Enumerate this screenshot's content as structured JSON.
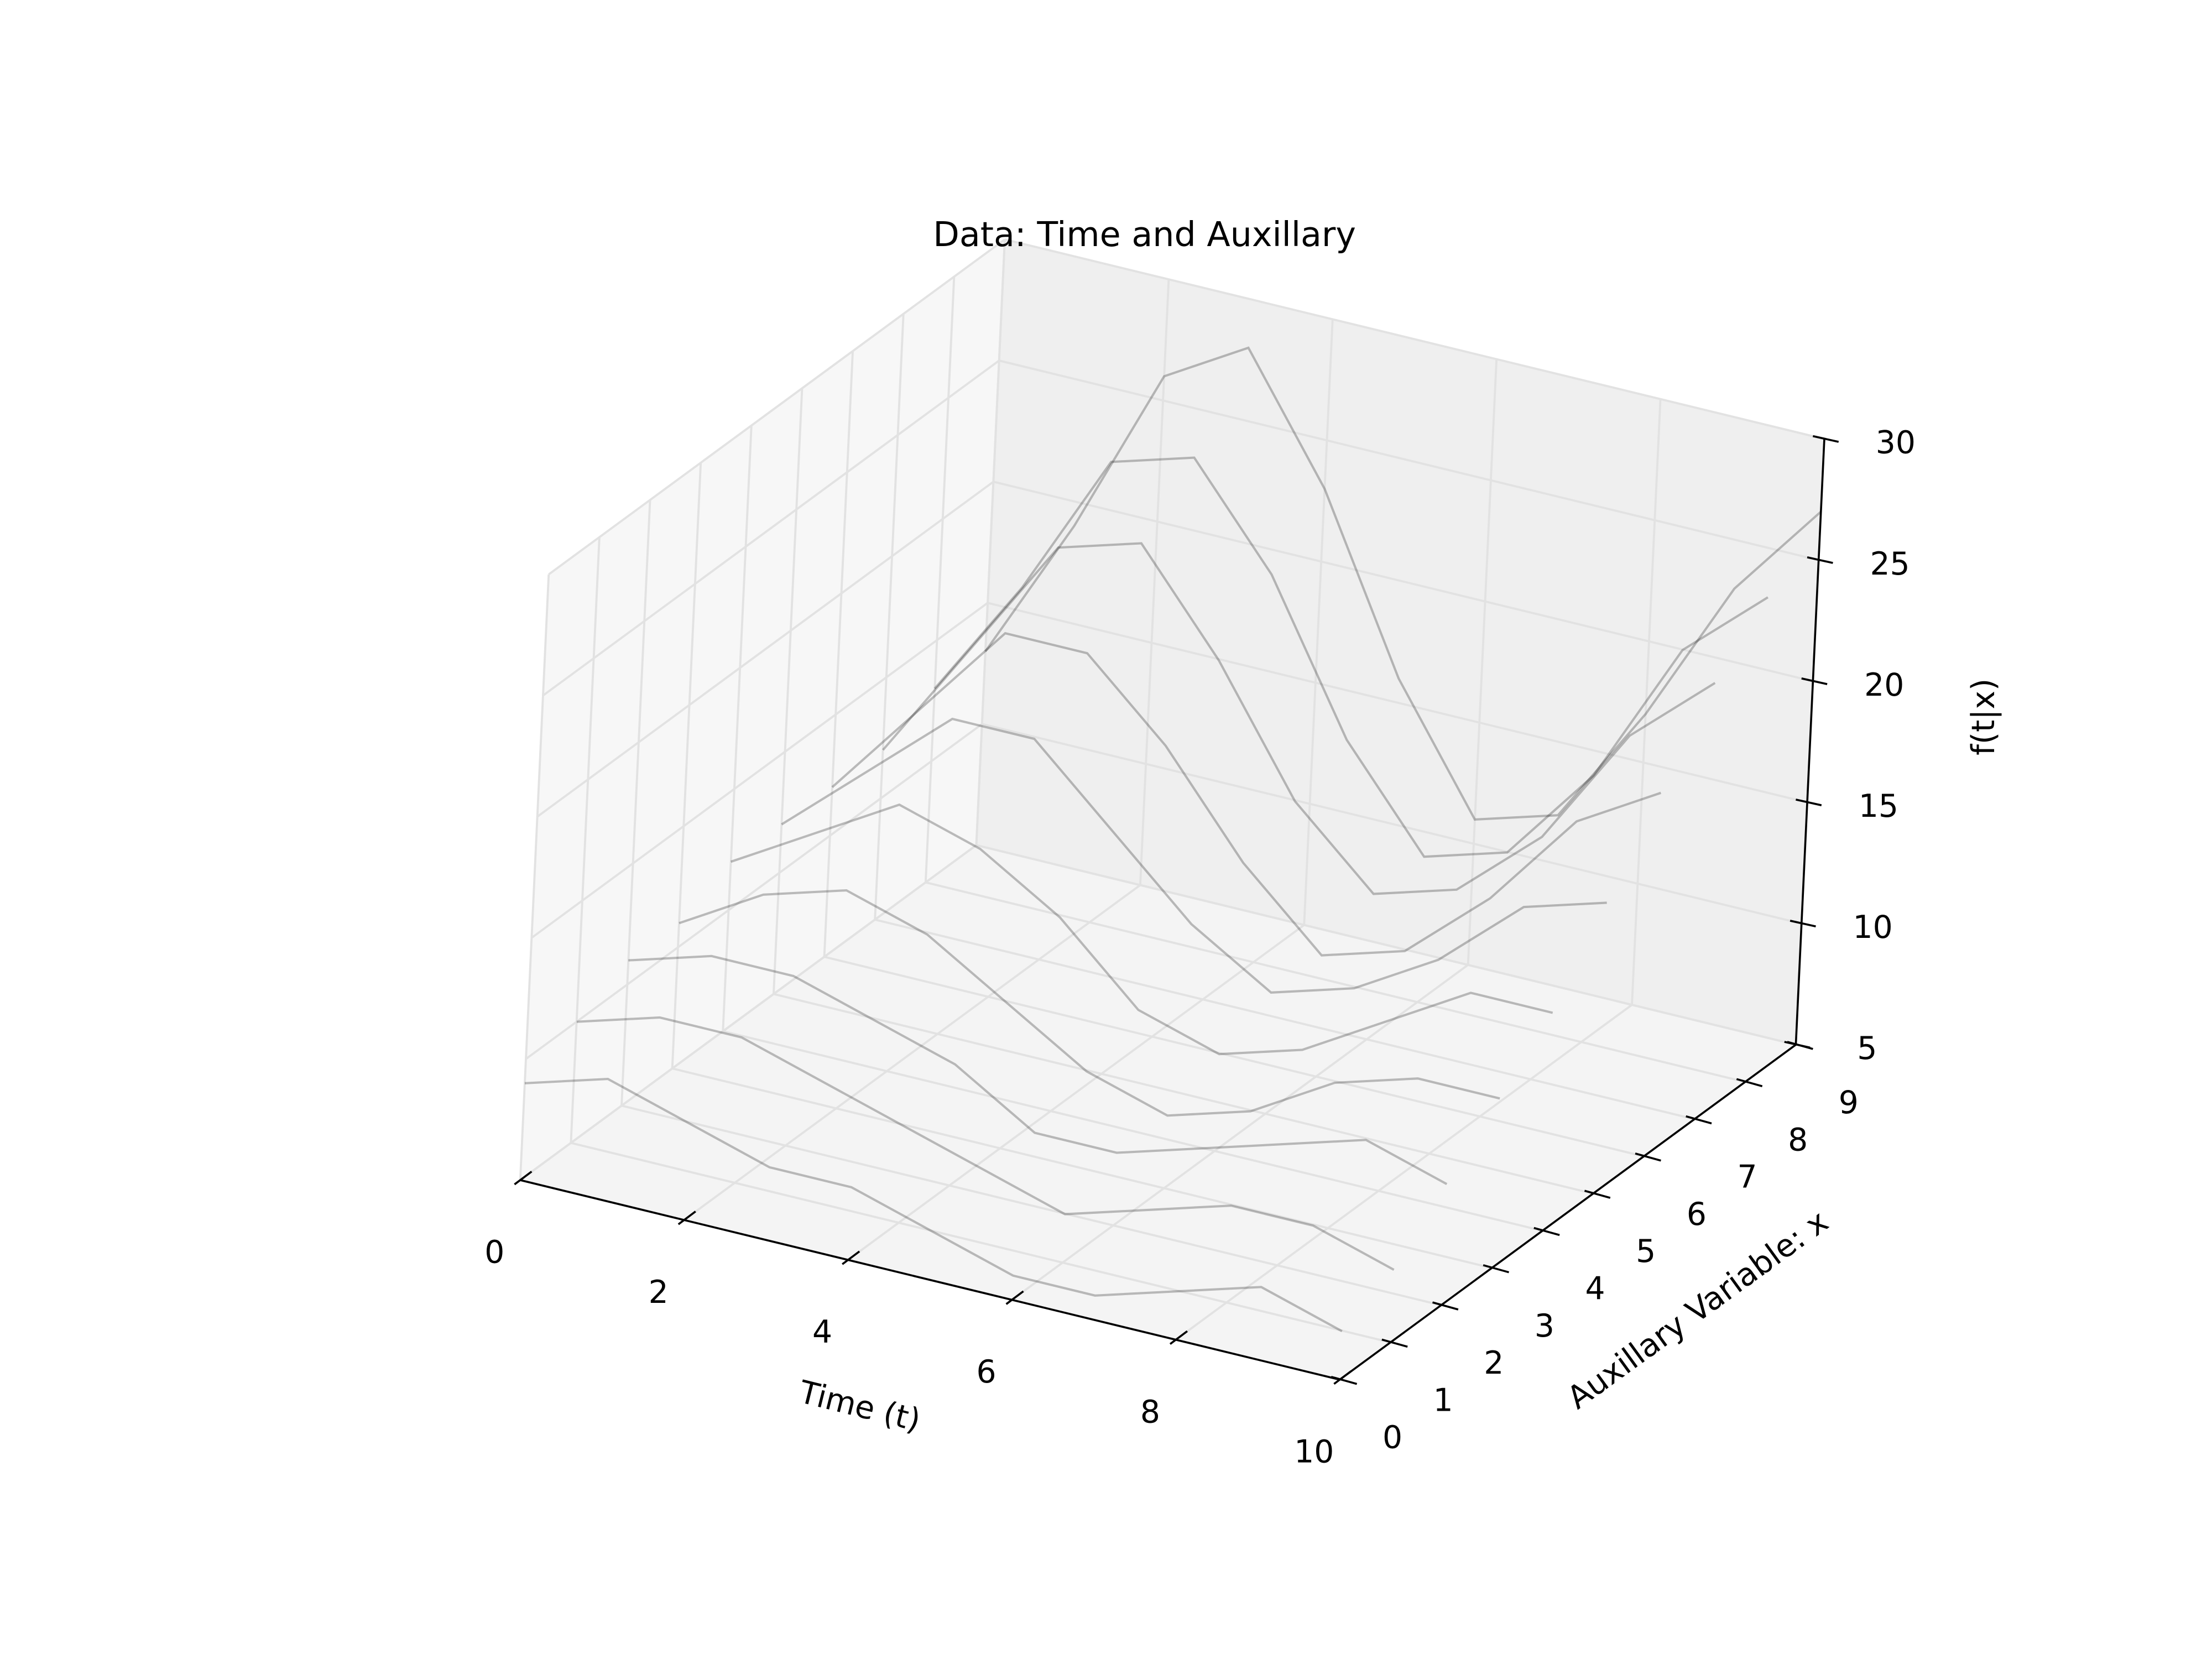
{
  "chart_data": {
    "type": "line3d",
    "title": "Data: Time and Auxillary",
    "xlabel": "Time (t)",
    "ylabel": "Auxillary Variable: x",
    "zlabel": "f(t|x)",
    "x": [
      0,
      1,
      2,
      3,
      4,
      5,
      6,
      7,
      8,
      9,
      10
    ],
    "series": [
      {
        "color": "#000000",
        "aux": 0,
        "values": [
          9,
          10,
          9,
          8,
          8,
          7,
          6,
          6,
          7,
          8,
          7
        ]
      },
      {
        "color": "#000000",
        "aux": 1,
        "values": [
          10,
          11,
          11,
          10,
          9,
          8,
          7,
          8,
          9,
          9,
          8
        ]
      },
      {
        "color": "#000000",
        "aux": 2,
        "values": [
          11,
          12,
          12,
          11,
          10,
          8,
          8,
          9,
          10,
          11,
          10
        ]
      },
      {
        "color": "#000000",
        "aux": 3,
        "values": [
          11,
          13,
          14,
          13,
          11,
          9,
          8,
          9,
          11,
          12,
          12
        ]
      },
      {
        "color": "#000000",
        "aux": 4,
        "values": [
          12,
          14,
          16,
          15,
          13,
          10,
          9,
          10,
          12,
          14,
          14
        ]
      },
      {
        "color": "#000000",
        "aux": 5,
        "values": [
          12,
          15,
          18,
          18,
          15,
          12,
          10,
          11,
          13,
          16,
          17
        ]
      },
      {
        "color": "#000000",
        "aux": 6,
        "values": [
          12,
          16,
          20,
          20,
          17,
          13,
          10,
          11,
          14,
          18,
          20
        ]
      },
      {
        "color": "#000000",
        "aux": 7,
        "values": [
          12,
          17,
          22,
          23,
          19,
          14,
          11,
          12,
          15,
          20,
          23
        ]
      },
      {
        "color": "#000000",
        "aux": 8,
        "values": [
          13,
          18,
          24,
          25,
          21,
          15,
          11,
          12,
          16,
          22,
          25
        ]
      },
      {
        "color": "#000000",
        "aux": 9,
        "values": [
          13,
          19,
          26,
          28,
          23,
          16,
          11,
          12,
          17,
          23,
          27
        ]
      }
    ],
    "xlim": [
      0,
      10
    ],
    "xticks": [
      0,
      2,
      4,
      6,
      8,
      10
    ],
    "ylim": [
      0,
      9
    ],
    "yticks": [
      0,
      1,
      2,
      3,
      4,
      5,
      6,
      7,
      8,
      9
    ],
    "zlim": [
      5,
      30
    ],
    "zticks": [
      5,
      10,
      15,
      20,
      25,
      30
    ],
    "grid": true
  }
}
